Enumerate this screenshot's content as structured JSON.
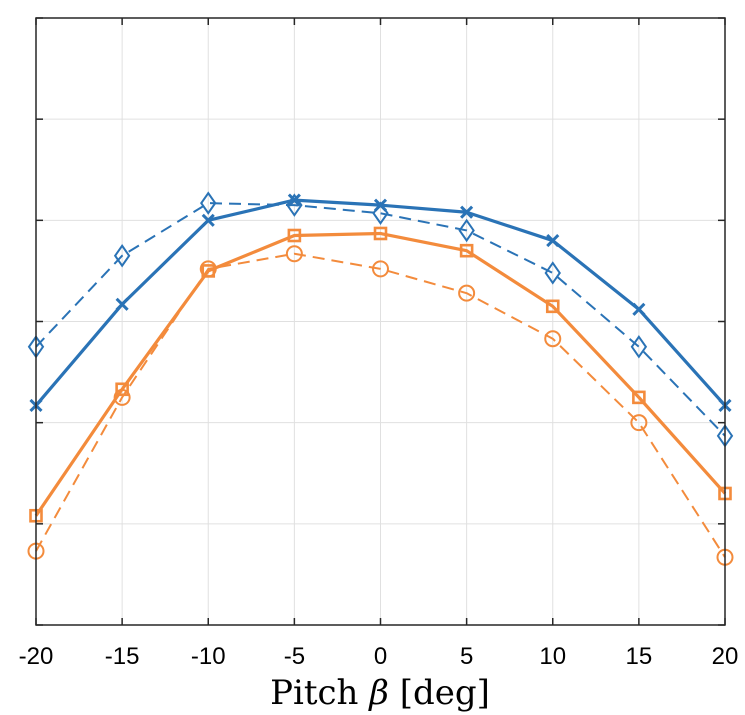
{
  "chart_data": {
    "type": "line",
    "title": "",
    "xlabel": "Pitch β [deg]",
    "xlabel_parts": {
      "prefix": "Pitch ",
      "symbol": "β",
      "suffix": " [deg]"
    },
    "ylabel": "",
    "x": [
      -20,
      -15,
      -10,
      -5,
      0,
      5,
      10,
      15,
      20
    ],
    "xlim": [
      -20,
      20
    ],
    "ylim": [
      0,
      6
    ],
    "xticks": [
      -20,
      -15,
      -10,
      -5,
      0,
      5,
      10,
      15,
      20
    ],
    "xtick_labels": [
      "-20",
      "-15",
      "-10",
      "-5",
      "0",
      "5",
      "10",
      "15",
      "20"
    ],
    "yticks": [
      0,
      1,
      2,
      3,
      4,
      5,
      6
    ],
    "ytick_labels": [
      "",
      "",
      "",
      "",
      "",
      "",
      ""
    ],
    "grid": true,
    "legend": "none",
    "series": [
      {
        "values": [
          2.17,
          3.17,
          4.0,
          4.2,
          4.15,
          4.08,
          3.8,
          3.12,
          2.17
        ],
        "color": "#2a73b6",
        "style": "solid",
        "marker": "x"
      },
      {
        "values": [
          2.75,
          3.65,
          4.17,
          4.15,
          4.07,
          3.9,
          3.48,
          2.75,
          1.87
        ],
        "color": "#2a73b6",
        "style": "dashed",
        "marker": "diamond"
      },
      {
        "values": [
          1.08,
          2.33,
          3.5,
          3.85,
          3.87,
          3.7,
          3.15,
          2.25,
          1.3
        ],
        "color": "#f38b3c",
        "style": "solid",
        "marker": "square"
      },
      {
        "values": [
          0.73,
          2.25,
          3.52,
          3.67,
          3.52,
          3.28,
          2.83,
          2.0,
          0.67
        ],
        "color": "#f38b3c",
        "style": "dashed",
        "marker": "circle"
      }
    ]
  }
}
